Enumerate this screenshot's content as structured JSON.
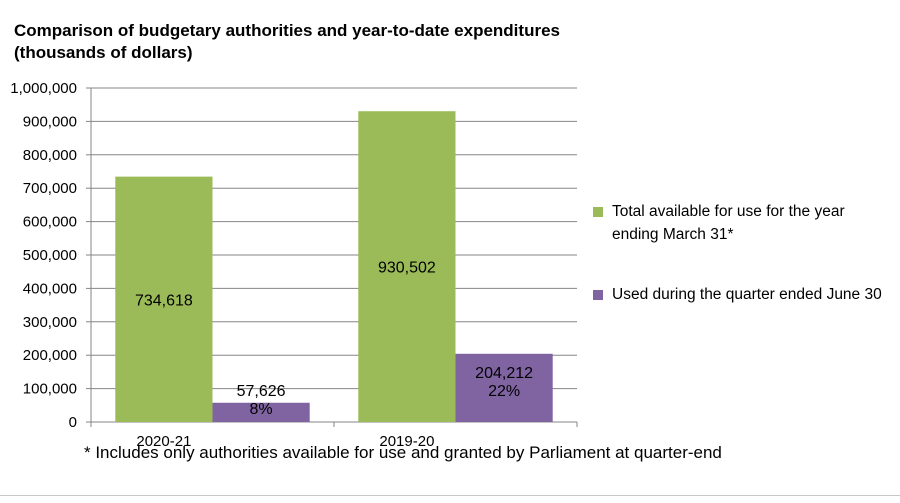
{
  "chart_data": {
    "type": "bar",
    "title": "Comparison of  budgetary authorities and year-to-date expenditures (thousands of dollars)",
    "xlabel": "",
    "ylabel": "",
    "categories": [
      "2020-21",
      "2019-20"
    ],
    "ylim": [
      0,
      1000000
    ],
    "yticks": [
      0,
      100000,
      200000,
      300000,
      400000,
      500000,
      600000,
      700000,
      800000,
      900000,
      1000000
    ],
    "ytick_labels": [
      "0",
      "100,000",
      "200,000",
      "300,000",
      "400,000",
      "500,000",
      "600,000",
      "700,000",
      "800,000",
      "900,000",
      "1,000,000"
    ],
    "grid": true,
    "legend_position": "right",
    "series": [
      {
        "name": "Total available for use for the year ending  March 31*",
        "color": "#9bbb59",
        "values": [
          734618,
          930502
        ],
        "labels": [
          [
            "734,618"
          ],
          [
            "930,502"
          ]
        ],
        "label_position": "middle"
      },
      {
        "name": "Used during the quarter ended June 30",
        "color": "#8064a2",
        "values": [
          57626,
          204212
        ],
        "labels": [
          [
            "57,626",
            "8%"
          ],
          [
            "204,212",
            "22%"
          ]
        ],
        "label_position": "top"
      }
    ],
    "footnote": "* Includes only authorities available for use and granted by Parliament at quarter-end"
  }
}
